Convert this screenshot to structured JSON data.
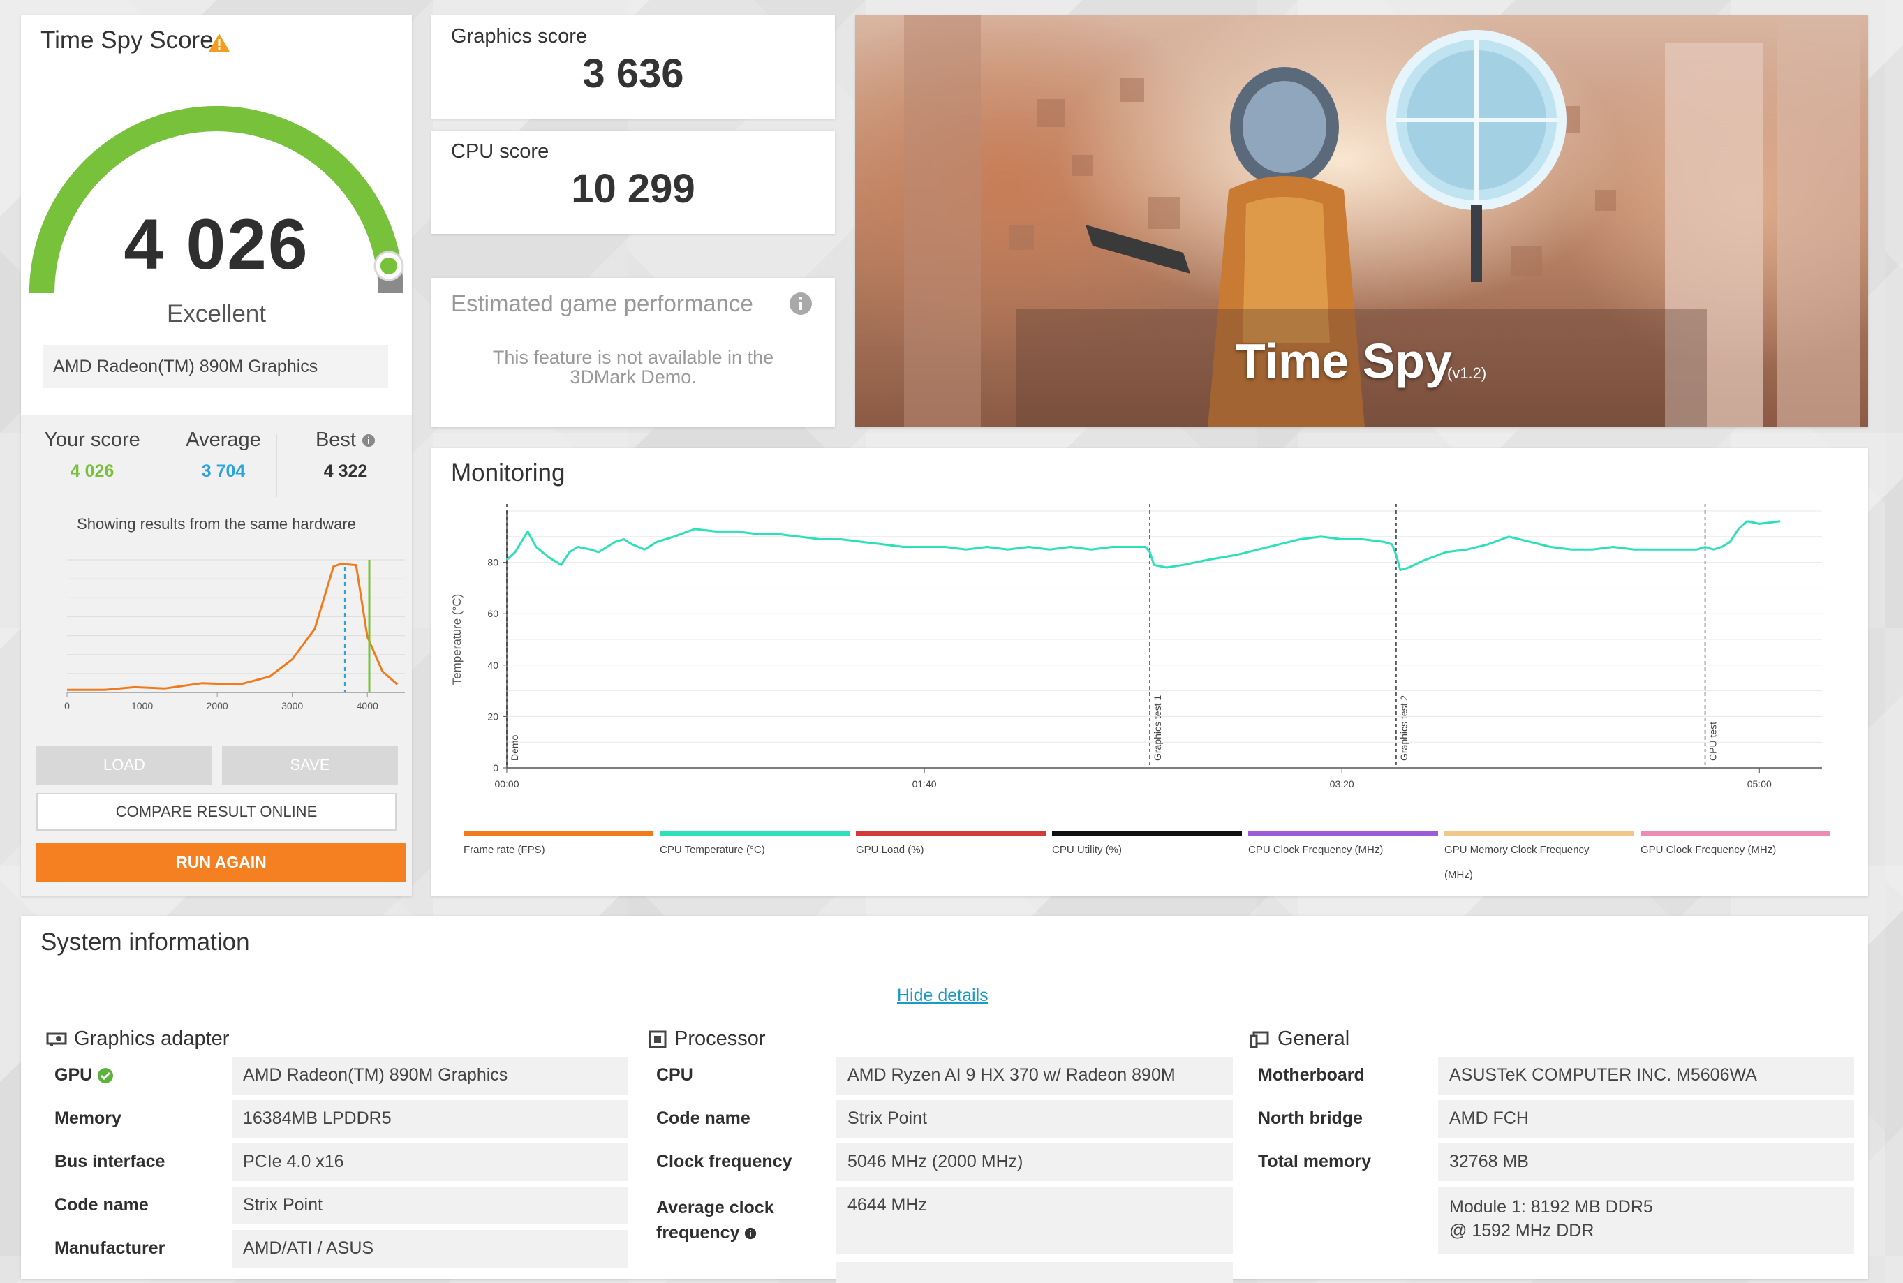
{
  "score_panel": {
    "title": "Time Spy Score",
    "score": "4 026",
    "rating": "Excellent",
    "gauge_fraction": 0.95,
    "gpu": "AMD Radeon(TM) 890M Graphics",
    "your_score_label": "Your score",
    "your_score": "4 026",
    "average_label": "Average",
    "average": "3 704",
    "best_label": "Best",
    "best": "4 322",
    "showing": "Showing results from the same hardware",
    "load": "LOAD",
    "save": "SAVE",
    "compare": "COMPARE RESULT ONLINE",
    "run_again": "RUN AGAIN",
    "colors": {
      "green": "#77c23a",
      "blue": "#2ba3dc",
      "orange": "#f58021"
    }
  },
  "histogram": {
    "x_ticks": [
      "0",
      "1000",
      "2000",
      "3000",
      "4000"
    ],
    "xlim": [
      0,
      4500
    ],
    "points": [
      [
        0,
        2
      ],
      [
        500,
        2
      ],
      [
        900,
        4
      ],
      [
        1300,
        3
      ],
      [
        1800,
        7
      ],
      [
        2300,
        6
      ],
      [
        2700,
        12
      ],
      [
        3000,
        25
      ],
      [
        3300,
        48
      ],
      [
        3550,
        95
      ],
      [
        3650,
        97
      ],
      [
        3850,
        96
      ],
      [
        4000,
        42
      ],
      [
        4200,
        16
      ],
      [
        4400,
        6
      ]
    ],
    "average": 3704,
    "your_score": 4026
  },
  "graphics_card": {
    "label": "Graphics score",
    "value": "3 636"
  },
  "cpu_card": {
    "label": "CPU score",
    "value": "10 299"
  },
  "estimated": {
    "title": "Estimated game performance",
    "text_line1": "This feature is not available in the",
    "text_line2": "3DMark Demo."
  },
  "hero": {
    "title": "Time Spy",
    "version": "(v1.2)"
  },
  "monitoring": {
    "title": "Monitoring",
    "chart_data": {
      "type": "line",
      "ylabel": "Temperature (°C)",
      "ylim": [
        0,
        100
      ],
      "y_ticks": [
        "0",
        "20",
        "40",
        "60",
        "80"
      ],
      "x_ticks": [
        "00:00",
        "01:40",
        "03:20",
        "05:00"
      ],
      "xlim": [
        0,
        315
      ],
      "markers": [
        {
          "t": 0,
          "label": "Demo"
        },
        {
          "t": 154,
          "label": "Graphics test 1"
        },
        {
          "t": 213,
          "label": "Graphics test 2"
        },
        {
          "t": 287,
          "label": "CPU test"
        }
      ],
      "series": [
        {
          "name": "CPU Temperature (°C)",
          "color": "#2de0b8",
          "x": [
            0,
            2,
            5,
            7,
            10,
            13,
            15,
            17,
            20,
            22,
            24,
            26,
            28,
            30,
            33,
            36,
            40,
            45,
            50,
            55,
            60,
            65,
            70,
            75,
            80,
            85,
            90,
            95,
            100,
            105,
            110,
            115,
            120,
            125,
            130,
            135,
            140,
            145,
            150,
            153,
            154,
            155,
            158,
            162,
            168,
            175,
            180,
            185,
            190,
            195,
            200,
            205,
            210,
            212,
            213,
            214,
            216,
            220,
            225,
            230,
            235,
            240,
            245,
            250,
            255,
            260,
            265,
            270,
            275,
            280,
            285,
            287,
            289,
            291,
            293,
            295,
            297,
            300,
            305
          ],
          "y": [
            81,
            84,
            92,
            86,
            82,
            79,
            84,
            86,
            85,
            84,
            86,
            88,
            89,
            87,
            85,
            88,
            90,
            93,
            92,
            92,
            91,
            91,
            90,
            89,
            89,
            88,
            87,
            86,
            86,
            86,
            85,
            86,
            85,
            86,
            85,
            86,
            85,
            86,
            86,
            86,
            84,
            79,
            78,
            79,
            81,
            83,
            85,
            87,
            89,
            90,
            89,
            89,
            88,
            87,
            83,
            77,
            78,
            81,
            84,
            85,
            87,
            90,
            88,
            86,
            85,
            85,
            86,
            85,
            85,
            85,
            85,
            86,
            85,
            86,
            88,
            93,
            96,
            95,
            96
          ]
        }
      ],
      "legend": [
        {
          "name": "Frame rate (FPS)",
          "color": "#f07b1d"
        },
        {
          "name": "CPU Temperature (°C)",
          "color": "#2de0b8"
        },
        {
          "name": "GPU Load (%)",
          "color": "#d33a3a"
        },
        {
          "name": "CPU Utility (%)",
          "color": "#111111"
        },
        {
          "name": "CPU Clock Frequency (MHz)",
          "color": "#9a5bd6"
        },
        {
          "name": "GPU Memory Clock Frequency (MHz)",
          "color": "#f0c98a"
        },
        {
          "name": "GPU Clock Frequency (MHz)",
          "color": "#ec8bb3"
        }
      ]
    }
  },
  "system_info": {
    "title": "System information",
    "hide_details": "Hide details",
    "graphics": {
      "header": "Graphics adapter",
      "rows": [
        {
          "k": "GPU",
          "v": "AMD Radeon(TM) 890M Graphics"
        },
        {
          "k": "Memory",
          "v": "16384MB LPDDR5"
        },
        {
          "k": "Bus interface",
          "v": "PCIe 4.0 x16"
        },
        {
          "k": "Code name",
          "v": "Strix Point"
        },
        {
          "k": "Manufacturer",
          "v": "AMD/ATI / ASUS"
        }
      ]
    },
    "processor": {
      "header": "Processor",
      "rows": [
        {
          "k": "CPU",
          "v": "AMD Ryzen AI 9 HX 370 w/ Radeon 890M"
        },
        {
          "k": "Code name",
          "v": "Strix Point"
        },
        {
          "k": "Clock frequency",
          "v": "5046 MHz (2000 MHz)"
        },
        {
          "k1": "Average clock",
          "k2": "frequency",
          "v": "4644 MHz"
        }
      ]
    },
    "general": {
      "header": "General",
      "rows": [
        {
          "k": "Motherboard",
          "v": "ASUSTeK COMPUTER INC. M5606WA"
        },
        {
          "k": "North bridge",
          "v": "AMD FCH"
        },
        {
          "k": "Total memory",
          "v": "32768 MB"
        },
        {
          "v1": "Module 1: 8192 MB DDR5",
          "v2": "@ 1592 MHz DDR"
        }
      ]
    }
  }
}
